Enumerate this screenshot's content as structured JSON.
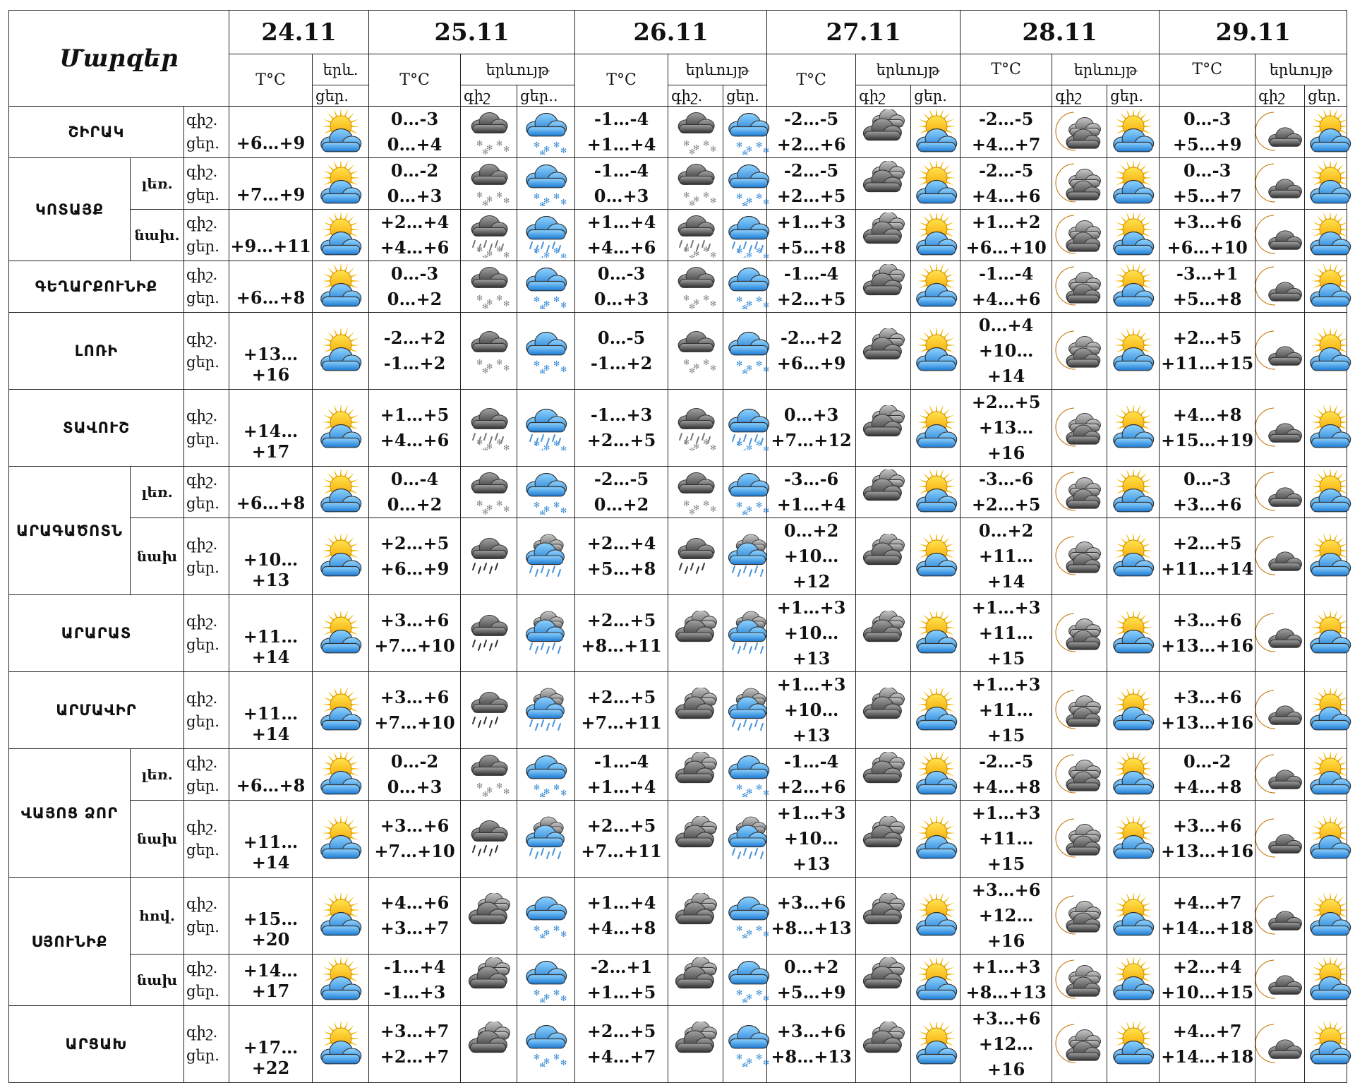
{
  "header": {
    "regions_title": "Մարզեր",
    "dates": [
      "24.11",
      "25.11",
      "26.11",
      "27.11",
      "28.11",
      "29.11"
    ],
    "temp_label": "T°C",
    "weather_label": "երևույթ",
    "weather_label_short": "երև.",
    "night_label": "գիշ.",
    "day_label": "ցեր.",
    "night_label_cut": "գիշ",
    "day_label_cut": "ցեր.."
  },
  "rows": [
    {
      "region": "ՇԻՐԱԿ",
      "sub": "",
      "d24": "+6…+9",
      "i24": "sun-cloud-icon",
      "days": [
        [
          "0…-3",
          "0…+4",
          "snow-cloud-icon",
          "snow-blue-icon"
        ],
        [
          "-1…-4",
          "+1…+4",
          "snow-cloud-icon",
          "snow-blue-icon"
        ],
        [
          "-2…-5",
          "+2…+6",
          "dark-cloud-icon",
          "sun-cloud-icon"
        ],
        [
          "-2…-5",
          "+4…+7",
          "moon-cloud-icon",
          "sun-cloud-icon"
        ],
        [
          "0…-3",
          "+5…+9",
          "moon-small-cloud-icon",
          "sun-cloud-icon"
        ]
      ]
    },
    {
      "region": "ԿՈՏԱՅՔ",
      "sub": "լեռ.",
      "d24": "+7…+9",
      "i24": "sun-cloud-icon",
      "days": [
        [
          "0…-2",
          "0…+3",
          "snow-cloud-icon",
          "snow-blue-icon"
        ],
        [
          "-1…-4",
          "0…+3",
          "snow-cloud-icon",
          "snow-blue-icon"
        ],
        [
          "-2…-5",
          "+2…+5",
          "dark-cloud-icon",
          "sun-cloud-icon"
        ],
        [
          "-2…-5",
          "+4…+6",
          "moon-cloud-icon",
          "sun-cloud-icon"
        ],
        [
          "0…-3",
          "+5…+7",
          "moon-small-cloud-icon",
          "sun-cloud-icon"
        ]
      ]
    },
    {
      "region": "",
      "sub": "նախ.",
      "d24": "+9…+11",
      "i24": "sun-cloud-icon",
      "days": [
        [
          "+2…+4",
          "+4…+6",
          "sleet-cloud-icon",
          "sleet-blue-icon"
        ],
        [
          "+1…+4",
          "+4…+6",
          "sleet-cloud-icon",
          "sleet-blue-icon"
        ],
        [
          "+1…+3",
          "+5…+8",
          "dark-cloud-icon",
          "sun-cloud-icon"
        ],
        [
          "+1…+2",
          "+6…+10",
          "moon-cloud-icon",
          "sun-cloud-icon"
        ],
        [
          "+3…+6",
          "+6…+10",
          "moon-small-cloud-icon",
          "sun-cloud-icon"
        ]
      ]
    },
    {
      "region": "ԳԵՂԱՐՔՈՒՆԻՔ",
      "sub": "",
      "d24": "+6…+8",
      "i24": "sun-cloud-icon",
      "days": [
        [
          "0…-3",
          "0…+2",
          "snow-cloud-icon",
          "snow-blue-icon"
        ],
        [
          "0…-3",
          "0…+3",
          "snow-cloud-icon",
          "snow-blue-icon"
        ],
        [
          "-1…-4",
          "+2…+5",
          "dark-cloud-icon",
          "sun-cloud-icon"
        ],
        [
          "-1…-4",
          "+4…+6",
          "moon-cloud-icon",
          "sun-cloud-icon"
        ],
        [
          "-3…+1",
          "+5…+8",
          "moon-small-cloud-icon",
          "sun-cloud-icon"
        ]
      ]
    },
    {
      "region": "ԼՈՌԻ",
      "sub": "",
      "d24": "+13…+16",
      "i24": "sun-cloud-icon",
      "days": [
        [
          "-2…+2",
          "-1…+2",
          "snow-cloud-icon",
          "snow-blue-icon"
        ],
        [
          "0…-5",
          "-1…+2",
          "snow-cloud-icon",
          "snow-blue-icon"
        ],
        [
          "-2…+2",
          "+6…+9",
          "dark-cloud-icon",
          "sun-cloud-icon"
        ],
        [
          "0…+4",
          "+10…+14",
          "moon-cloud-icon",
          "sun-cloud-icon"
        ],
        [
          "+2…+5",
          "+11…+15",
          "moon-small-cloud-icon",
          "sun-cloud-icon"
        ]
      ]
    },
    {
      "region": "ՏԱՎՈՒՇ",
      "sub": "",
      "d24": "+14…+17",
      "i24": "sun-cloud-icon",
      "days": [
        [
          "+1…+5",
          "+4…+6",
          "sleet-cloud-icon",
          "sleet-blue-icon"
        ],
        [
          "-1…+3",
          "+2…+5",
          "sleet-cloud-icon",
          "sleet-blue-icon"
        ],
        [
          "0…+3",
          "+7…+12",
          "dark-cloud-icon",
          "sun-cloud-icon"
        ],
        [
          "+2…+5",
          "+13…+16",
          "moon-cloud-icon",
          "sun-cloud-icon"
        ],
        [
          "+4…+8",
          "+15…+19",
          "moon-small-cloud-icon",
          "sun-cloud-icon"
        ]
      ]
    },
    {
      "region": "ԱՐԱԳԱԾՈՏՆ",
      "sub": "լեռ.",
      "d24": "+6…+8",
      "i24": "sun-cloud-icon",
      "days": [
        [
          "0…-4",
          "0…+2",
          "snow-cloud-icon",
          "snow-blue-icon"
        ],
        [
          "-2…-5",
          "0…+2",
          "snow-cloud-icon",
          "snow-blue-icon"
        ],
        [
          "-3…-6",
          "+1…+4",
          "dark-cloud-icon",
          "sun-cloud-icon"
        ],
        [
          "-3…-6",
          "+2…+5",
          "moon-cloud-icon",
          "sun-cloud-icon"
        ],
        [
          "0…-3",
          "+3…+6",
          "moon-small-cloud-icon",
          "sun-cloud-icon"
        ]
      ]
    },
    {
      "region": "",
      "sub": "նախ",
      "d24": "+10…+13",
      "i24": "sun-cloud-icon",
      "days": [
        [
          "+2…+5",
          "+6…+9",
          "rain-cloud-icon",
          "rain-blue-icon"
        ],
        [
          "+2…+4",
          "+5…+8",
          "rain-cloud-icon",
          "rain-blue-icon"
        ],
        [
          "0…+2",
          "+10…+12",
          "dark-cloud-icon",
          "sun-cloud-icon"
        ],
        [
          "0…+2",
          "+11…+14",
          "moon-cloud-icon",
          "sun-cloud-icon"
        ],
        [
          "+2…+5",
          "+11…+14",
          "moon-small-cloud-icon",
          "sun-cloud-icon"
        ]
      ]
    },
    {
      "region": "ԱՐԱՐԱՏ",
      "sub": "",
      "d24": "+11…+14",
      "i24": "sun-cloud-icon",
      "days": [
        [
          "+3…+6",
          "+7…+10",
          "rain-cloud-icon",
          "rain-blue-icon"
        ],
        [
          "+2…+5",
          "+8…+11",
          "dark-cloud-icon",
          "rain-blue-icon"
        ],
        [
          "+1…+3",
          "+10…+13",
          "dark-cloud-icon",
          "sun-cloud-icon"
        ],
        [
          "+1…+3",
          "+11…+15",
          "moon-cloud-icon",
          "sun-cloud-icon"
        ],
        [
          "+3…+6",
          "+13…+16",
          "moon-small-cloud-icon",
          "sun-cloud-icon"
        ]
      ]
    },
    {
      "region": "ԱՐՄԱՎԻՐ",
      "sub": "",
      "d24": "+11…+14",
      "i24": "sun-cloud-icon",
      "days": [
        [
          "+3…+6",
          "+7…+10",
          "rain-cloud-icon",
          "rain-blue-icon"
        ],
        [
          "+2…+5",
          "+7…+11",
          "dark-cloud-icon",
          "rain-blue-icon"
        ],
        [
          "+1…+3",
          "+10…+13",
          "dark-cloud-icon",
          "sun-cloud-icon"
        ],
        [
          "+1…+3",
          "+11…+15",
          "moon-cloud-icon",
          "sun-cloud-icon"
        ],
        [
          "+3…+6",
          "+13…+16",
          "moon-small-cloud-icon",
          "sun-cloud-icon"
        ]
      ]
    },
    {
      "region": "ՎԱՅՈՑ ՁՈՐ",
      "sub": "լեռ.",
      "d24": "+6…+8",
      "i24": "sun-cloud-icon",
      "days": [
        [
          "0…-2",
          "0…+3",
          "snow-cloud-icon",
          "snow-blue-icon"
        ],
        [
          "-1…-4",
          "+1…+4",
          "dark-cloud-icon",
          "snow-blue-icon"
        ],
        [
          "-1…-4",
          "+2…+6",
          "dark-cloud-icon",
          "sun-cloud-icon"
        ],
        [
          "-2…-5",
          "+4…+8",
          "moon-cloud-icon",
          "sun-cloud-icon"
        ],
        [
          "0…-2",
          "+4…+8",
          "moon-small-cloud-icon",
          "sun-cloud-icon"
        ]
      ]
    },
    {
      "region": "",
      "sub": "նախ",
      "d24": "+11…+14",
      "i24": "sun-cloud-icon",
      "days": [
        [
          "+3…+6",
          "+7…+10",
          "rain-cloud-icon",
          "rain-blue-icon"
        ],
        [
          "+2…+5",
          "+7…+11",
          "dark-cloud-icon",
          "rain-blue-icon"
        ],
        [
          "+1…+3",
          "+10…+13",
          "dark-cloud-icon",
          "sun-cloud-icon"
        ],
        [
          "+1…+3",
          "+11…+15",
          "moon-cloud-icon",
          "sun-cloud-icon"
        ],
        [
          "+3…+6",
          "+13…+16",
          "moon-small-cloud-icon",
          "sun-cloud-icon"
        ]
      ]
    },
    {
      "region": "ՍՅՈՒՆԻՔ",
      "sub": "հով.",
      "d24": "+15…+20",
      "i24": "sun-cloud-icon",
      "days": [
        [
          "+4…+6",
          "+3…+7",
          "dark-cloud-icon",
          "snow-blue-icon"
        ],
        [
          "+1…+4",
          "+4…+8",
          "dark-cloud-icon",
          "snow-blue-icon"
        ],
        [
          "+3…+6",
          "+8…+13",
          "dark-cloud-icon",
          "sun-cloud-icon"
        ],
        [
          "+3…+6",
          "+12…+16",
          "moon-cloud-icon",
          "sun-cloud-icon"
        ],
        [
          "+4…+7",
          "+14…+18",
          "moon-small-cloud-icon",
          "sun-cloud-icon"
        ]
      ]
    },
    {
      "region": "",
      "sub": "նախ",
      "d24": "+14…+17",
      "i24": "sun-cloud-icon",
      "days": [
        [
          "-1…+4",
          "-1…+3",
          "dark-cloud-icon",
          "snow-blue-icon"
        ],
        [
          "-2…+1",
          "+1…+5",
          "dark-cloud-icon",
          "snow-blue-icon"
        ],
        [
          "0…+2",
          "+5…+9",
          "dark-cloud-icon",
          "sun-cloud-icon"
        ],
        [
          "+1…+3",
          "+8…+13",
          "moon-cloud-icon",
          "sun-cloud-icon"
        ],
        [
          "+2…+4",
          "+10…+15",
          "moon-small-cloud-icon",
          "sun-cloud-icon"
        ]
      ]
    },
    {
      "region": "ԱՐՑԱԽ",
      "sub": "",
      "d24": "+17…+22",
      "i24": "sun-cloud-icon",
      "days": [
        [
          "+3…+7",
          "+2…+7",
          "dark-cloud-icon",
          "snow-blue-icon"
        ],
        [
          "+2…+5",
          "+4…+7",
          "dark-cloud-icon",
          "snow-blue-icon"
        ],
        [
          "+3…+6",
          "+8…+13",
          "dark-cloud-icon",
          "sun-cloud-icon"
        ],
        [
          "+3…+6",
          "+12…+16",
          "moon-cloud-icon",
          "sun-cloud-icon"
        ],
        [
          "+4…+7",
          "+14…+18",
          "moon-small-cloud-icon",
          "sun-cloud-icon"
        ]
      ]
    }
  ]
}
